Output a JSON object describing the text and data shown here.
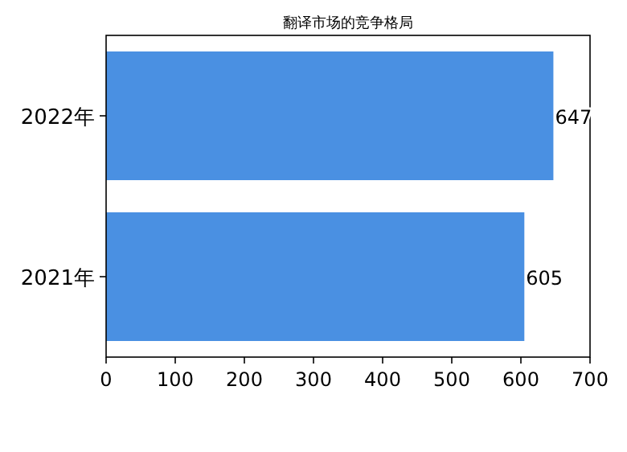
{
  "chart_data": {
    "type": "bar",
    "orientation": "horizontal",
    "title": "翻译市场的竞争格局",
    "categories": [
      "2022年",
      "2021年"
    ],
    "values": [
      647,
      605
    ],
    "color": "#4a90e2",
    "xlim": [
      0,
      700
    ],
    "xticks": [
      0,
      100,
      200,
      300,
      400,
      500,
      600,
      700
    ],
    "data_labels": true,
    "grid": false
  }
}
